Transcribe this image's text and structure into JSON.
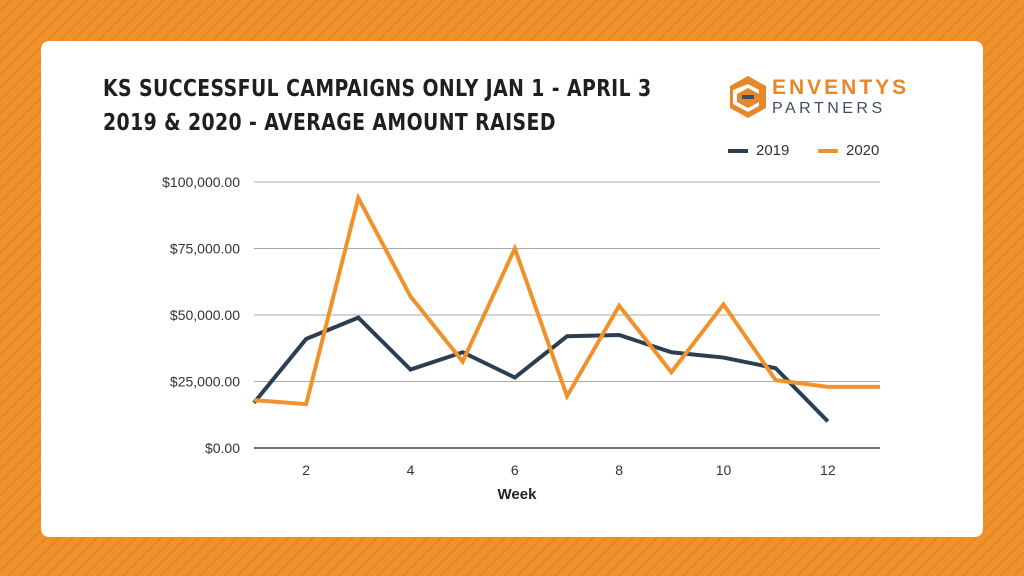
{
  "chart_data": {
    "type": "line",
    "title_line1": "KS SUCCESSFUL CAMPAIGNS ONLY JAN 1 - APRIL 3",
    "title_line2": "2019 & 2020 - AVERAGE AMOUNT RAISED",
    "xlabel": "Week",
    "ylabel": "",
    "x": [
      1,
      2,
      3,
      4,
      5,
      6,
      7,
      8,
      9,
      10,
      11,
      12,
      13
    ],
    "xlim": [
      1,
      13
    ],
    "ylim": [
      0,
      100000
    ],
    "x_ticks": [
      2,
      4,
      6,
      8,
      10,
      12
    ],
    "x_tick_labels": [
      "2",
      "4",
      "6",
      "8",
      "10",
      "12"
    ],
    "y_ticks": [
      0,
      25000,
      50000,
      75000,
      100000
    ],
    "y_tick_labels": [
      "$0.00",
      "$25,000.00",
      "$50,000.00",
      "$75,000.00",
      "$100,000.00"
    ],
    "grid": true,
    "legend_position": "top-right",
    "series": [
      {
        "name": "2019",
        "color": "#2b3e52",
        "values": [
          17000,
          41000,
          49000,
          29500,
          36000,
          26500,
          42000,
          42500,
          36000,
          34000,
          30000,
          10000,
          null
        ]
      },
      {
        "name": "2020",
        "color": "#f0922b",
        "values": [
          18000,
          16500,
          94000,
          57000,
          32500,
          75000,
          19500,
          53500,
          28500,
          54000,
          25500,
          23000,
          23000
        ]
      }
    ]
  },
  "logo": {
    "word1": "ENVENTYS",
    "word2": "PARTNERS",
    "colors": {
      "orange": "#e8862a",
      "navy": "#3d4e63"
    }
  }
}
